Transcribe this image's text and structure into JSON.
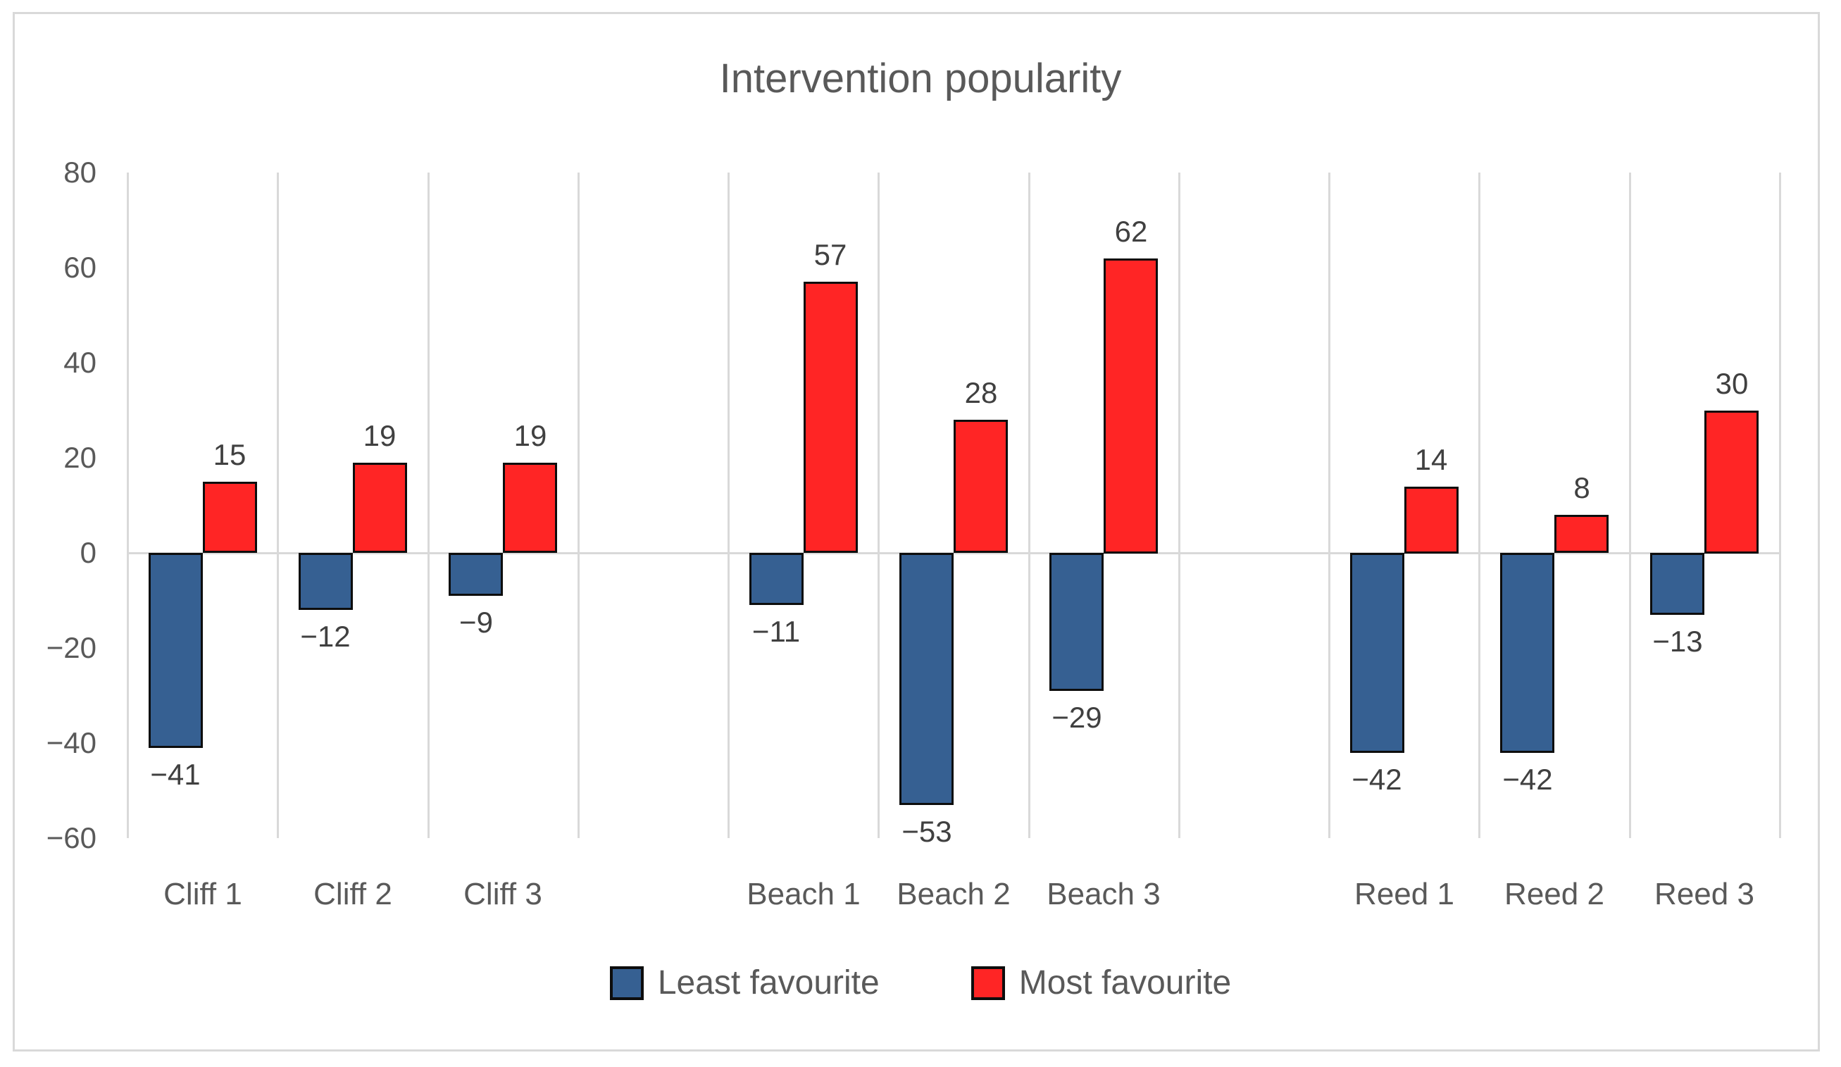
{
  "chart_data": {
    "type": "bar",
    "title": "Intervention popularity",
    "categories": [
      "Cliff 1",
      "Cliff 2",
      "Cliff 3",
      "Beach 1",
      "Beach 2",
      "Beach 3",
      "Reed 1",
      "Reed 2",
      "Reed 3"
    ],
    "category_groups": [
      [
        "Cliff 1",
        "Cliff 2",
        "Cliff 3"
      ],
      [
        "Beach 1",
        "Beach 2",
        "Beach 3"
      ],
      [
        "Reed 1",
        "Reed 2",
        "Reed 3"
      ]
    ],
    "series": [
      {
        "name": "Least favourite",
        "color": "#366092",
        "values": [
          -41,
          -12,
          -9,
          -11,
          -53,
          -29,
          -42,
          -42,
          -13
        ],
        "labels": [
          "−41",
          "−12",
          "−9",
          "−11",
          "−53",
          "−29",
          "−42",
          "−42",
          "−13"
        ]
      },
      {
        "name": "Most favourite",
        "color": "#ff2525",
        "values": [
          15,
          19,
          19,
          57,
          28,
          62,
          14,
          8,
          30
        ],
        "labels": [
          "15",
          "19",
          "19",
          "57",
          "28",
          "62",
          "14",
          "8",
          "30"
        ]
      }
    ],
    "ylim": [
      -60,
      80
    ],
    "yticks": [
      80,
      60,
      40,
      20,
      0,
      -20,
      -40,
      -60
    ],
    "ytick_labels": [
      "80",
      "60",
      "40",
      "20",
      "0",
      "−20",
      "−40",
      "−60"
    ],
    "grid": "vertical category-boundary gridlines plus zero line only",
    "gridline_color": "#d9d9d9",
    "bar_border_color": "#0d0d0d",
    "text_color": "#595959",
    "data_label_color": "#404040",
    "legend_position": "bottom"
  }
}
